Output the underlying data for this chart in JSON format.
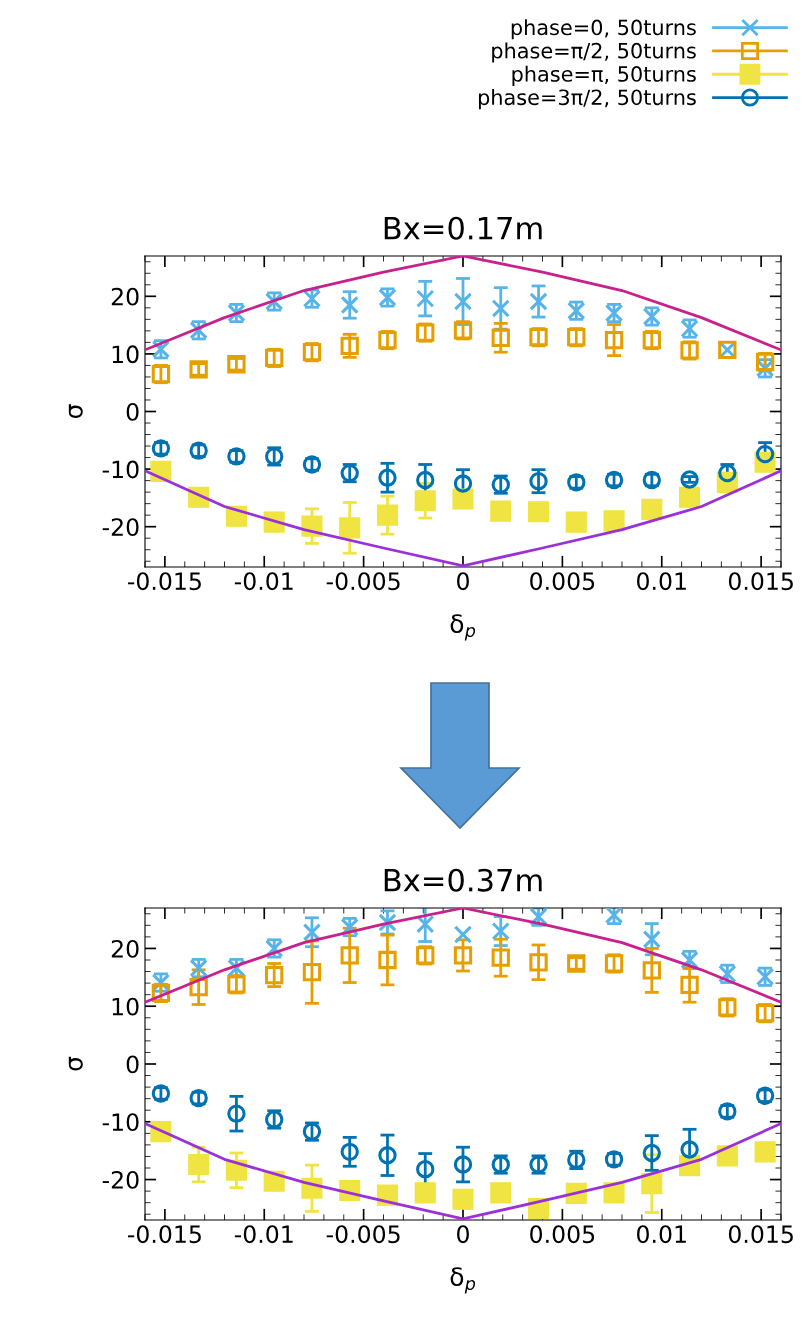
{
  "chart_data": [
    {
      "type": "scatter",
      "title": "Bx=0.17m",
      "xlabel": "δ$_{p}$",
      "ylabel": "σ",
      "legend": "top",
      "grid": false,
      "x": [
        -0.0152,
        -0.0133,
        -0.0114,
        -0.0095,
        -0.0076,
        -0.0057,
        -0.0038,
        -0.0019,
        0,
        0.0019,
        0.0038,
        0.0057,
        0.0076,
        0.0095,
        0.0114,
        0.0133,
        0.0152
      ],
      "xlim": [
        -0.016,
        0.016
      ],
      "xticks": [
        -0.015,
        -0.01,
        -0.005,
        0,
        0.005,
        0.01,
        0.015
      ],
      "ylim": [
        -27,
        27
      ],
      "yticks": [
        -20,
        -10,
        0,
        10,
        20
      ],
      "series": [
        {
          "name": "phase=0, 50turns",
          "color": "#56b4e9",
          "marker": "cross",
          "values": [
            10.8,
            14.1,
            17.1,
            19.1,
            19.6,
            18.5,
            19.8,
            19.6,
            19.1,
            17.9,
            19.1,
            17.5,
            17.1,
            16.5,
            14.4,
            10.7,
            7.5
          ],
          "errors": [
            1.5,
            1.5,
            1.5,
            1.5,
            1.5,
            2.3,
            1.5,
            3,
            4,
            3.6,
            2.7,
            1.5,
            1.5,
            1.5,
            1.5,
            null,
            1.5
          ]
        },
        {
          "name": "phase=π/2, 50turns",
          "color": "#e69f00",
          "marker": "square",
          "values": [
            6.5,
            7.3,
            8.2,
            9.3,
            10.3,
            11.4,
            12.4,
            13.7,
            14.1,
            12.8,
            12.9,
            12.9,
            12.4,
            12.4,
            10.6,
            10.7,
            8.6
          ],
          "errors": [
            1.5,
            1,
            1,
            1.5,
            1.5,
            2,
            1.5,
            1.5,
            1.5,
            2.5,
            1.5,
            1.5,
            2.7,
            1.5,
            1.5,
            null,
            1.5
          ]
        },
        {
          "name": "phase=π, 50turns",
          "color": "#f0e442",
          "marker": "square",
          "values": [
            -10.4,
            -14.9,
            -18.2,
            -19.2,
            -19.9,
            -20.2,
            -18,
            -15.5,
            -15.2,
            -17.3,
            -17.4,
            -19.2,
            -19,
            -17,
            -14.9,
            -12.3,
            -8.8
          ],
          "errors": [
            1.5,
            1.5,
            1.5,
            1.5,
            3,
            4.4,
            3.3,
            3,
            1.5,
            1.5,
            1.5,
            1.5,
            1.5,
            1.5,
            1.5,
            1.5,
            1.5
          ]
        },
        {
          "name": "phase=3π/2, 50turns",
          "color": "#0072b2",
          "marker": "circle",
          "values": [
            -6.4,
            -6.8,
            -7.8,
            -7.8,
            -9.2,
            -10.7,
            -11.5,
            -11.9,
            -12.5,
            -12.7,
            -12.1,
            -12.3,
            -11.9,
            -11.9,
            -11.8,
            -10.7,
            -7.4
          ],
          "errors": [
            1,
            1,
            1,
            1.5,
            1,
            1.5,
            2.5,
            2.7,
            2.4,
            1.5,
            2,
            1,
            1,
            1,
            0.5,
            1.5,
            2
          ]
        },
        {
          "type": "line",
          "color": "#c8208c",
          "x": [
            -0.016,
            -0.012,
            -0.008,
            -0.004,
            0,
            0.004,
            0.008,
            0.012,
            0.016
          ],
          "values": [
            10.7,
            16.3,
            21,
            24.2,
            27,
            24.2,
            21,
            16.3,
            10.7
          ]
        },
        {
          "type": "line",
          "color": "#9b30d9",
          "x": [
            -0.016,
            -0.012,
            -0.008,
            -0.004,
            0,
            0.004,
            0.008,
            0.012,
            0.016
          ],
          "values": [
            -10.3,
            -16.5,
            -20.5,
            -23.7,
            -26.8,
            -23.7,
            -20.5,
            -16.5,
            -10.3
          ]
        }
      ]
    },
    {
      "type": "scatter",
      "title": "Bx=0.37m",
      "xlabel": "δ$_{p}$",
      "ylabel": "σ",
      "grid": false,
      "x": [
        -0.0152,
        -0.0133,
        -0.0114,
        -0.0095,
        -0.0076,
        -0.0057,
        -0.0038,
        -0.0019,
        0,
        0.0019,
        0.0038,
        0.0057,
        0.0076,
        0.0095,
        0.0114,
        0.0133,
        0.0152
      ],
      "xlim": [
        -0.016,
        0.016
      ],
      "xticks": [
        -0.015,
        -0.01,
        -0.005,
        0,
        0.005,
        0.01,
        0.015
      ],
      "ylim": [
        -27,
        27
      ],
      "yticks": [
        -20,
        -10,
        0,
        10,
        20
      ],
      "series": [
        {
          "color": "#56b4e9",
          "marker": "cross",
          "values": [
            14.1,
            16.6,
            16.6,
            20,
            22.8,
            23.7,
            24.5,
            24.2,
            22.4,
            23,
            25.5,
            null,
            25.8,
            21.6,
            18,
            15.6,
            15.1
          ],
          "errors": [
            1.5,
            1.5,
            1.5,
            1.5,
            2.5,
            1.5,
            2,
            3,
            null,
            2.5,
            1.5,
            null,
            1.5,
            2.7,
            1.5,
            1.5,
            1.5
          ]
        },
        {
          "color": "#e69f00",
          "marker": "square",
          "values": [
            12.3,
            13.3,
            13.8,
            15.4,
            15.9,
            18.8,
            18,
            18.8,
            18.8,
            18.4,
            17.6,
            17.4,
            17.4,
            16.2,
            13.7,
            9.8,
            8.8
          ],
          "errors": [
            1.5,
            3,
            1.5,
            2,
            5.4,
            4.7,
            4.3,
            1.5,
            2.7,
            3.2,
            3,
            1,
            1.5,
            3.8,
            3,
            1.5,
            1.5
          ]
        },
        {
          "color": "#f0e442",
          "marker": "square",
          "values": [
            -11.7,
            -17.4,
            -18.4,
            -20.3,
            -21.5,
            -21.9,
            -22.7,
            -22.3,
            -23.4,
            -22.3,
            -25,
            -22.4,
            -22.3,
            -20.7,
            -17.6,
            -15.9,
            -15.2
          ],
          "errors": [
            1.5,
            3,
            3,
            1.5,
            4,
            1.5,
            1.5,
            1.5,
            1.5,
            1.5,
            1.5,
            1.5,
            1.5,
            5,
            1.5,
            1.5,
            1.5
          ]
        },
        {
          "color": "#0072b2",
          "marker": "circle",
          "values": [
            -5.1,
            -5.9,
            -8.6,
            -9.6,
            -11.7,
            -15.2,
            -15.8,
            -18.2,
            -17.4,
            -17.4,
            -17.4,
            -16.6,
            -16.5,
            -15.4,
            -14.8,
            -8.2,
            -5.5
          ],
          "errors": [
            1,
            1,
            3,
            1.5,
            1.5,
            2.5,
            3.5,
            2.7,
            3,
            1.5,
            1.5,
            1.5,
            1,
            3,
            3.5,
            1,
            1
          ]
        },
        {
          "type": "line",
          "color": "#c8208c",
          "x": [
            -0.016,
            -0.012,
            -0.008,
            -0.004,
            0,
            0.004,
            0.008,
            0.012,
            0.016
          ],
          "values": [
            10.7,
            16.3,
            21,
            24.2,
            27,
            24.2,
            21,
            16.3,
            10.7
          ]
        },
        {
          "type": "line",
          "color": "#9b30d9",
          "x": [
            -0.016,
            -0.012,
            -0.008,
            -0.004,
            0,
            0.004,
            0.008,
            0.012,
            0.016
          ],
          "values": [
            -10.3,
            -16.5,
            -20.5,
            -23.7,
            -26.8,
            -23.7,
            -20.5,
            -16.5,
            -10.3
          ]
        }
      ]
    }
  ]
}
